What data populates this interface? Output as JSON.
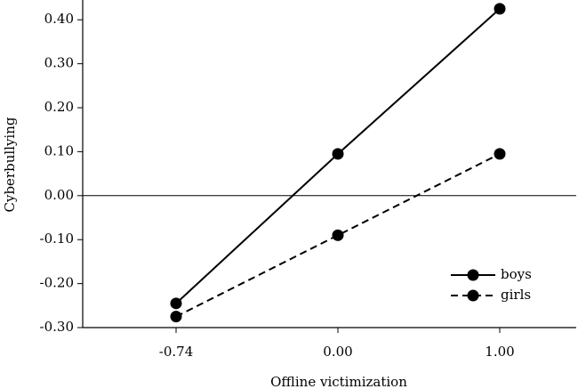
{
  "chart_data": {
    "type": "line",
    "x_label": "Offline victimization",
    "y_label": "Cyberbullying",
    "categories": [
      "-0.74",
      "0.00",
      "1.00"
    ],
    "series": [
      {
        "name": "boys",
        "color": "#000000",
        "dashed": false,
        "values": [
          -0.245,
          0.095,
          0.425
        ]
      },
      {
        "name": "girls",
        "color": "#000000",
        "dashed": true,
        "values": [
          -0.275,
          -0.09,
          0.095
        ]
      }
    ],
    "ylim": [
      -0.3,
      0.445
    ],
    "yticks": [
      {
        "value": -0.3,
        "label": "-0.30"
      },
      {
        "value": -0.2,
        "label": "-0.20"
      },
      {
        "value": -0.1,
        "label": "-0.10"
      },
      {
        "value": 0,
        "label": "0.00"
      },
      {
        "value": 0.1,
        "label": "0.10"
      },
      {
        "value": 0.2,
        "label": "0.20"
      },
      {
        "value": 0.3,
        "label": "0.30"
      },
      {
        "value": 0.4,
        "label": "0.40"
      }
    ],
    "zero_line": true,
    "legend_position": "lower right"
  }
}
